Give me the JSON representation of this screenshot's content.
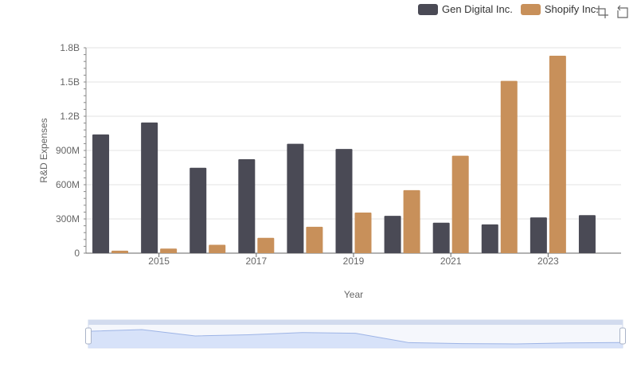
{
  "legend": {
    "items": [
      {
        "label": "Gen Digital Inc.",
        "color": "#4a4a55"
      },
      {
        "label": "Shopify Inc.",
        "color": "#c8905a"
      }
    ]
  },
  "toolbox": {
    "icons": [
      "zoom-icon",
      "restore-icon"
    ]
  },
  "chart_data": {
    "type": "bar",
    "xlabel": "Year",
    "ylabel": "R&D Expenses",
    "ylim": [
      0,
      1800000000
    ],
    "yticks": [
      "0",
      "300M",
      "600M",
      "900M",
      "1.2B",
      "1.5B",
      "1.8B"
    ],
    "xticks": [
      "2015",
      "2017",
      "2019",
      "2021",
      "2023"
    ],
    "categories": [
      "2014",
      "2015",
      "2016",
      "2017",
      "2018",
      "2019",
      "2020",
      "2021",
      "2022",
      "2023",
      "2024"
    ],
    "series": [
      {
        "name": "Gen Digital Inc.",
        "color": "#4a4a55",
        "values": [
          1040000000,
          1145000000,
          748000000,
          823000000,
          958000000,
          913000000,
          327000000,
          267000000,
          252000000,
          313000000,
          333000000
        ]
      },
      {
        "name": "Shopify Inc.",
        "color": "#c8905a",
        "values": [
          22000000,
          40000000,
          73000000,
          134000000,
          231000000,
          356000000,
          552000000,
          854000000,
          1510000000,
          1730000000,
          null
        ]
      }
    ],
    "grid": true,
    "legend_position": "top-right",
    "has_zoom_slider": true
  }
}
